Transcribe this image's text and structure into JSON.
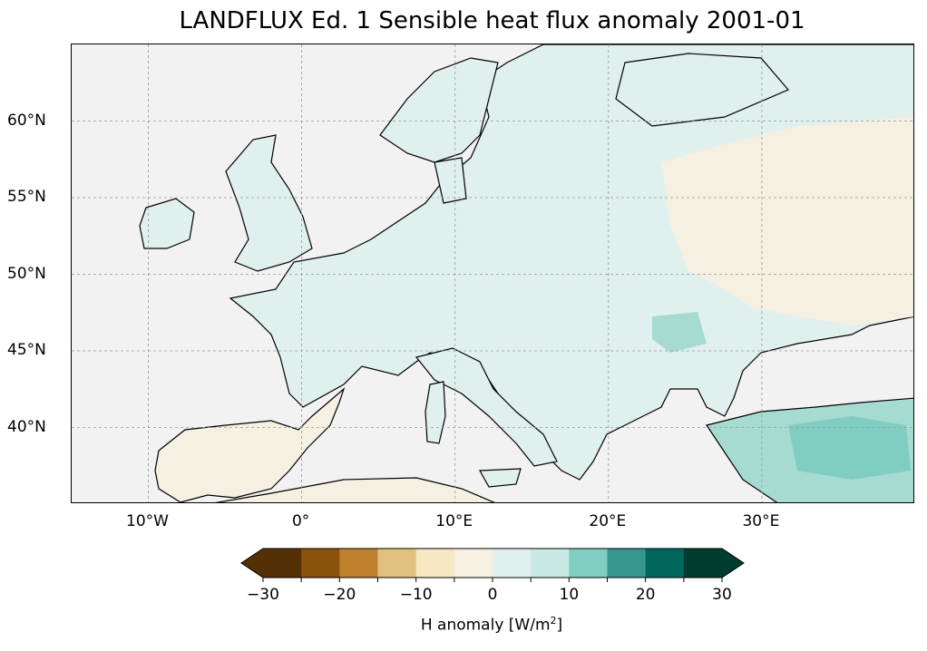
{
  "title": "LANDFLUX Ed. 1 Sensible heat flux anomaly 2001-01",
  "axes": {
    "lat_labels": [
      "60°N",
      "55°N",
      "50°N",
      "45°N",
      "40°N"
    ],
    "lon_labels": [
      "10°W",
      "0°",
      "10°E",
      "20°E",
      "30°E"
    ],
    "lat_values": [
      60,
      55,
      50,
      45,
      40
    ],
    "lon_values": [
      -10,
      0,
      10,
      20,
      30
    ],
    "lon_range": [
      -15,
      40
    ],
    "lat_range": [
      35,
      65
    ],
    "grid": true
  },
  "colorbar": {
    "ticks": [
      "−30",
      "−20",
      "−10",
      "0",
      "10",
      "20",
      "30"
    ],
    "tick_values": [
      -30,
      -20,
      -10,
      0,
      10,
      20,
      30
    ],
    "boundaries": [
      -30,
      -25,
      -20,
      -15,
      -10,
      -5,
      0,
      5,
      10,
      15,
      20,
      25,
      30
    ],
    "colors": [
      "#543005",
      "#8c510a",
      "#bf812d",
      "#dfc27d",
      "#f6e8c3",
      "#f5f0e1",
      "#e0f0ee",
      "#c7eae5",
      "#80cdc1",
      "#35978f",
      "#01665e",
      "#003c30"
    ],
    "extend": "both",
    "label_main": "H anomaly [W/m",
    "label_sup": "2",
    "label_end": "]"
  },
  "map_colors": {
    "ocean": "#f2f2f2",
    "land_light_teal": "#e0f0ee",
    "land_cream": "#f5f0e1",
    "teal_mid": "#a6dbd2",
    "teal_dark": "#5ab4a8",
    "coastline": "#000000"
  }
}
